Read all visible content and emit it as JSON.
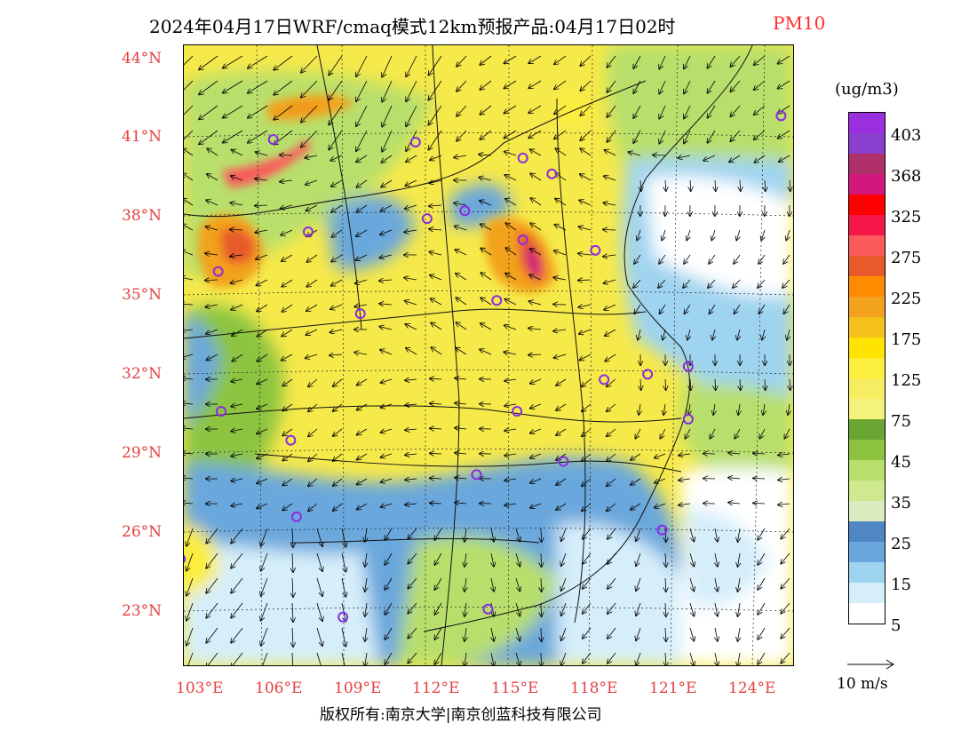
{
  "title": {
    "main": "2024年04月17日WRF/cmaq模式12km预报产品:04月17日02时",
    "variable": "PM10"
  },
  "axes": {
    "lat_labels": [
      "44°N",
      "41°N",
      "38°N",
      "35°N",
      "32°N",
      "29°N",
      "26°N",
      "23°N"
    ],
    "lon_labels": [
      "103°E",
      "106°E",
      "109°E",
      "112°E",
      "115°E",
      "118°E",
      "121°E",
      "124°E"
    ]
  },
  "legend": {
    "unit": "(ug/m3)",
    "colors": [
      "#9a2fe0",
      "#8a3fcf",
      "#b0306a",
      "#d2177e",
      "#ff0000",
      "#f5174a",
      "#fa5a5a",
      "#e85a2a",
      "#ff8c00",
      "#f3a21f",
      "#f5c01a",
      "#ffe300",
      "#fbee3d",
      "#f6ed62",
      "#f3f27b",
      "#6aa633",
      "#8cc43f",
      "#b8df6c",
      "#cfe98f",
      "#ddebc0",
      "#4f86c6",
      "#6aa7dc",
      "#9fd4f0",
      "#d6eefa",
      "#ffffff"
    ],
    "labels": [
      "403",
      "368",
      "325",
      "275",
      "225",
      "175",
      "125",
      "75",
      "45",
      "35",
      "25",
      "15",
      "5"
    ]
  },
  "wind_scale": {
    "label": "10 m/s"
  },
  "cities": [
    {
      "lon": 107.1,
      "lat": 37.4
    },
    {
      "lon": 105.9,
      "lat": 40.9
    },
    {
      "lon": 110.8,
      "lat": 40.8
    },
    {
      "lon": 114.5,
      "lat": 40.2
    },
    {
      "lon": 115.5,
      "lat": 39.6
    },
    {
      "lon": 104.0,
      "lat": 35.9
    },
    {
      "lon": 108.9,
      "lat": 34.3
    },
    {
      "lon": 111.2,
      "lat": 37.9
    },
    {
      "lon": 112.5,
      "lat": 38.2
    },
    {
      "lon": 114.5,
      "lat": 37.1
    },
    {
      "lon": 113.6,
      "lat": 34.8
    },
    {
      "lon": 117.0,
      "lat": 36.7
    },
    {
      "lon": 117.3,
      "lat": 31.8
    },
    {
      "lon": 118.8,
      "lat": 32.0
    },
    {
      "lon": 120.2,
      "lat": 32.3
    },
    {
      "lon": 120.2,
      "lat": 30.3
    },
    {
      "lon": 114.3,
      "lat": 30.6
    },
    {
      "lon": 112.9,
      "lat": 28.2
    },
    {
      "lon": 115.9,
      "lat": 28.7
    },
    {
      "lon": 106.5,
      "lat": 29.5
    },
    {
      "lon": 104.1,
      "lat": 30.6
    },
    {
      "lon": 106.7,
      "lat": 26.6
    },
    {
      "lon": 102.7,
      "lat": 25.0
    },
    {
      "lon": 108.3,
      "lat": 22.8
    },
    {
      "lon": 113.3,
      "lat": 23.1
    },
    {
      "lon": 119.3,
      "lat": 26.1
    },
    {
      "lon": 123.4,
      "lat": 41.8
    }
  ],
  "copyright": "版权所有:南京大学|南京创蓝科技有限公司",
  "colors": {
    "axis_label": "#e34040",
    "title_variable": "#ff2a2a",
    "city_marker": "#8a2be2"
  }
}
